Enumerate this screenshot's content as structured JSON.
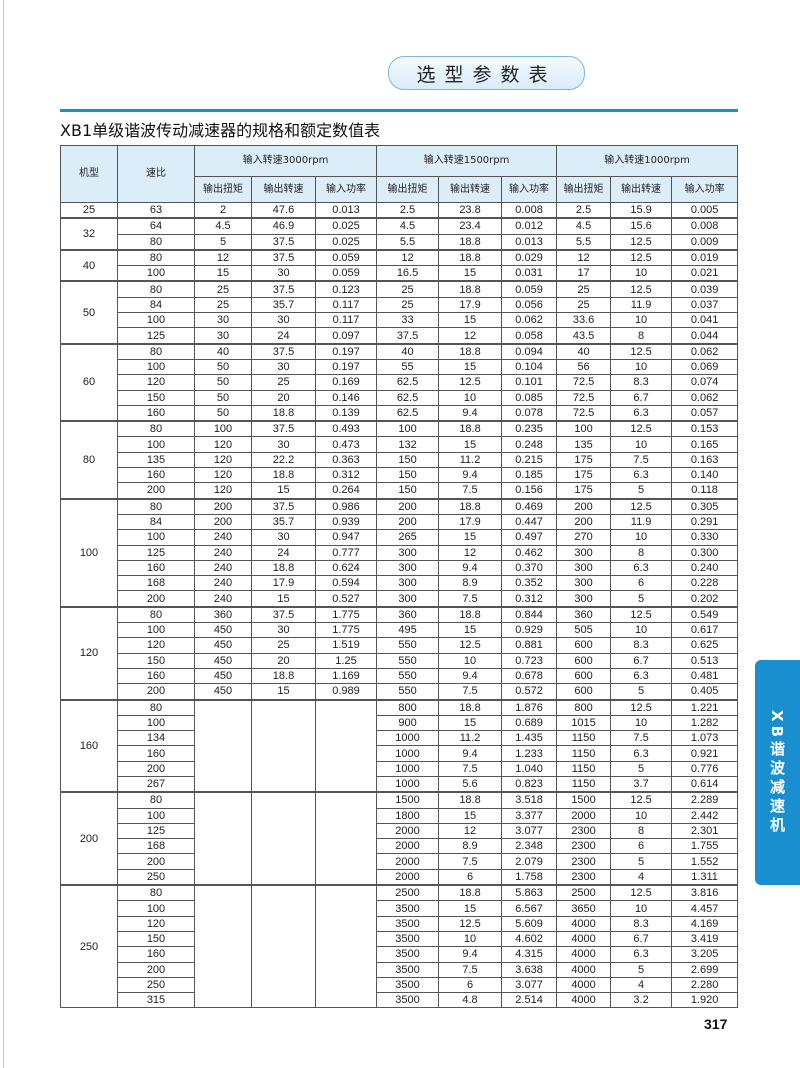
{
  "header": {
    "section_label": "选型参数表"
  },
  "title": "XB1单级谐波传动减速器的规格和额定数值表",
  "side_tab": "XB谐波减速机",
  "page_number": "317",
  "colors": {
    "accent": "#1a8fd0",
    "header_bg": "#dcedfa"
  },
  "table": {
    "col_model": "机型",
    "col_ratio": "速比",
    "groups": [
      "输入转速3000rpm",
      "输入转速1500rpm",
      "输入转速1000rpm"
    ],
    "sub_cols": [
      "输出扭矩",
      "输出转速",
      "输入功率"
    ],
    "models": [
      {
        "model": "25",
        "rows": [
          [
            "63",
            "2",
            "47.6",
            "0.013",
            "2.5",
            "23.8",
            "0.008",
            "2.5",
            "15.9",
            "0.005"
          ]
        ]
      },
      {
        "model": "32",
        "rows": [
          [
            "64",
            "4.5",
            "46.9",
            "0.025",
            "4.5",
            "23.4",
            "0.012",
            "4.5",
            "15.6",
            "0.008"
          ],
          [
            "80",
            "5",
            "37.5",
            "0.025",
            "5.5",
            "18.8",
            "0.013",
            "5.5",
            "12.5",
            "0.009"
          ]
        ]
      },
      {
        "model": "40",
        "rows": [
          [
            "80",
            "12",
            "37.5",
            "0.059",
            "12",
            "18.8",
            "0.029",
            "12",
            "12.5",
            "0.019"
          ],
          [
            "100",
            "15",
            "30",
            "0.059",
            "16.5",
            "15",
            "0.031",
            "17",
            "10",
            "0.021"
          ]
        ]
      },
      {
        "model": "50",
        "rows": [
          [
            "80",
            "25",
            "37.5",
            "0.123",
            "25",
            "18.8",
            "0.059",
            "25",
            "12.5",
            "0.039"
          ],
          [
            "84",
            "25",
            "35.7",
            "0.117",
            "25",
            "17.9",
            "0.056",
            "25",
            "11.9",
            "0.037"
          ],
          [
            "100",
            "30",
            "30",
            "0.117",
            "33",
            "15",
            "0.062",
            "33.6",
            "10",
            "0.041"
          ],
          [
            "125",
            "30",
            "24",
            "0.097",
            "37.5",
            "12",
            "0.058",
            "43.5",
            "8",
            "0.044"
          ]
        ]
      },
      {
        "model": "60",
        "rows": [
          [
            "80",
            "40",
            "37.5",
            "0.197",
            "40",
            "18.8",
            "0.094",
            "40",
            "12.5",
            "0.062"
          ],
          [
            "100",
            "50",
            "30",
            "0.197",
            "55",
            "15",
            "0.104",
            "56",
            "10",
            "0.069"
          ],
          [
            "120",
            "50",
            "25",
            "0.169",
            "62.5",
            "12.5",
            "0.101",
            "72.5",
            "8.3",
            "0.074"
          ],
          [
            "150",
            "50",
            "20",
            "0.146",
            "62.5",
            "10",
            "0.085",
            "72.5",
            "6.7",
            "0.062"
          ],
          [
            "160",
            "50",
            "18.8",
            "0.139",
            "62.5",
            "9.4",
            "0.078",
            "72.5",
            "6.3",
            "0.057"
          ]
        ]
      },
      {
        "model": "80",
        "rows": [
          [
            "80",
            "100",
            "37.5",
            "0.493",
            "100",
            "18.8",
            "0.235",
            "100",
            "12.5",
            "0.153"
          ],
          [
            "100",
            "120",
            "30",
            "0.473",
            "132",
            "15",
            "0.248",
            "135",
            "10",
            "0.165"
          ],
          [
            "135",
            "120",
            "22.2",
            "0.363",
            "150",
            "11.2",
            "0.215",
            "175",
            "7.5",
            "0.163"
          ],
          [
            "160",
            "120",
            "18.8",
            "0.312",
            "150",
            "9.4",
            "0.185",
            "175",
            "6.3",
            "0.140"
          ],
          [
            "200",
            "120",
            "15",
            "0.264",
            "150",
            "7.5",
            "0.156",
            "175",
            "5",
            "0.118"
          ]
        ]
      },
      {
        "model": "100",
        "rows": [
          [
            "80",
            "200",
            "37.5",
            "0.986",
            "200",
            "18.8",
            "0.469",
            "200",
            "12.5",
            "0.305"
          ],
          [
            "84",
            "200",
            "35.7",
            "0.939",
            "200",
            "17.9",
            "0.447",
            "200",
            "11.9",
            "0.291"
          ],
          [
            "100",
            "240",
            "30",
            "0.947",
            "265",
            "15",
            "0.497",
            "270",
            "10",
            "0.330"
          ],
          [
            "125",
            "240",
            "24",
            "0.777",
            "300",
            "12",
            "0.462",
            "300",
            "8",
            "0.300"
          ],
          [
            "160",
            "240",
            "18.8",
            "0.624",
            "300",
            "9.4",
            "0.370",
            "300",
            "6.3",
            "0.240"
          ],
          [
            "168",
            "240",
            "17.9",
            "0.594",
            "300",
            "8.9",
            "0.352",
            "300",
            "6",
            "0.228"
          ],
          [
            "200",
            "240",
            "15",
            "0.527",
            "300",
            "7.5",
            "0.312",
            "300",
            "5",
            "0.202"
          ]
        ]
      },
      {
        "model": "120",
        "rows": [
          [
            "80",
            "360",
            "37.5",
            "1.775",
            "360",
            "18.8",
            "0.844",
            "360",
            "12.5",
            "0.549"
          ],
          [
            "100",
            "450",
            "30",
            "1.775",
            "495",
            "15",
            "0.929",
            "505",
            "10",
            "0.617"
          ],
          [
            "120",
            "450",
            "25",
            "1.519",
            "550",
            "12.5",
            "0.881",
            "600",
            "8.3",
            "0.625"
          ],
          [
            "150",
            "450",
            "20",
            "1.25",
            "550",
            "10",
            "0.723",
            "600",
            "6.7",
            "0.513"
          ],
          [
            "160",
            "450",
            "18.8",
            "1.169",
            "550",
            "9.4",
            "0.678",
            "600",
            "6.3",
            "0.481"
          ],
          [
            "200",
            "450",
            "15",
            "0.989",
            "550",
            "7.5",
            "0.572",
            "600",
            "5",
            "0.405"
          ]
        ]
      },
      {
        "model": "160",
        "rows": [
          [
            "80",
            "",
            "",
            "",
            "800",
            "18.8",
            "1.876",
            "800",
            "12.5",
            "1.221"
          ],
          [
            "100",
            "",
            "",
            "",
            "900",
            "15",
            "0.689",
            "1015",
            "10",
            "1.282"
          ],
          [
            "134",
            "",
            "",
            "",
            "1000",
            "11.2",
            "1.435",
            "1150",
            "7.5",
            "1.073"
          ],
          [
            "160",
            "",
            "",
            "",
            "1000",
            "9.4",
            "1.233",
            "1150",
            "6.3",
            "0.921"
          ],
          [
            "200",
            "",
            "",
            "",
            "1000",
            "7.5",
            "1.040",
            "1150",
            "5",
            "0.776"
          ],
          [
            "267",
            "",
            "",
            "",
            "1000",
            "5.6",
            "0.823",
            "1150",
            "3.7",
            "0.614"
          ]
        ]
      },
      {
        "model": "200",
        "rows": [
          [
            "80",
            "",
            "",
            "",
            "1500",
            "18.8",
            "3.518",
            "1500",
            "12.5",
            "2.289"
          ],
          [
            "100",
            "",
            "",
            "",
            "1800",
            "15",
            "3.377",
            "2000",
            "10",
            "2.442"
          ],
          [
            "125",
            "",
            "",
            "",
            "2000",
            "12",
            "3.077",
            "2300",
            "8",
            "2.301"
          ],
          [
            "168",
            "",
            "",
            "",
            "2000",
            "8.9",
            "2.348",
            "2300",
            "6",
            "1.755"
          ],
          [
            "200",
            "",
            "",
            "",
            "2000",
            "7.5",
            "2.079",
            "2300",
            "5",
            "1.552"
          ],
          [
            "250",
            "",
            "",
            "",
            "2000",
            "6",
            "1.758",
            "2300",
            "4",
            "1.311"
          ]
        ]
      },
      {
        "model": "250",
        "rows": [
          [
            "80",
            "",
            "",
            "",
            "2500",
            "18.8",
            "5.863",
            "2500",
            "12.5",
            "3.816"
          ],
          [
            "100",
            "",
            "",
            "",
            "3500",
            "15",
            "6.567",
            "3650",
            "10",
            "4.457"
          ],
          [
            "120",
            "",
            "",
            "",
            "3500",
            "12.5",
            "5.609",
            "4000",
            "8.3",
            "4.169"
          ],
          [
            "150",
            "",
            "",
            "",
            "3500",
            "10",
            "4.602",
            "4000",
            "6.7",
            "3.419"
          ],
          [
            "160",
            "",
            "",
            "",
            "3500",
            "9.4",
            "4.315",
            "4000",
            "6.3",
            "3.205"
          ],
          [
            "200",
            "",
            "",
            "",
            "3500",
            "7.5",
            "3.638",
            "4000",
            "5",
            "2.699"
          ],
          [
            "250",
            "",
            "",
            "",
            "3500",
            "6",
            "3.077",
            "4000",
            "4",
            "2.280"
          ],
          [
            "315",
            "",
            "",
            "",
            "3500",
            "4.8",
            "2.514",
            "4000",
            "3.2",
            "1.920"
          ]
        ]
      }
    ]
  }
}
